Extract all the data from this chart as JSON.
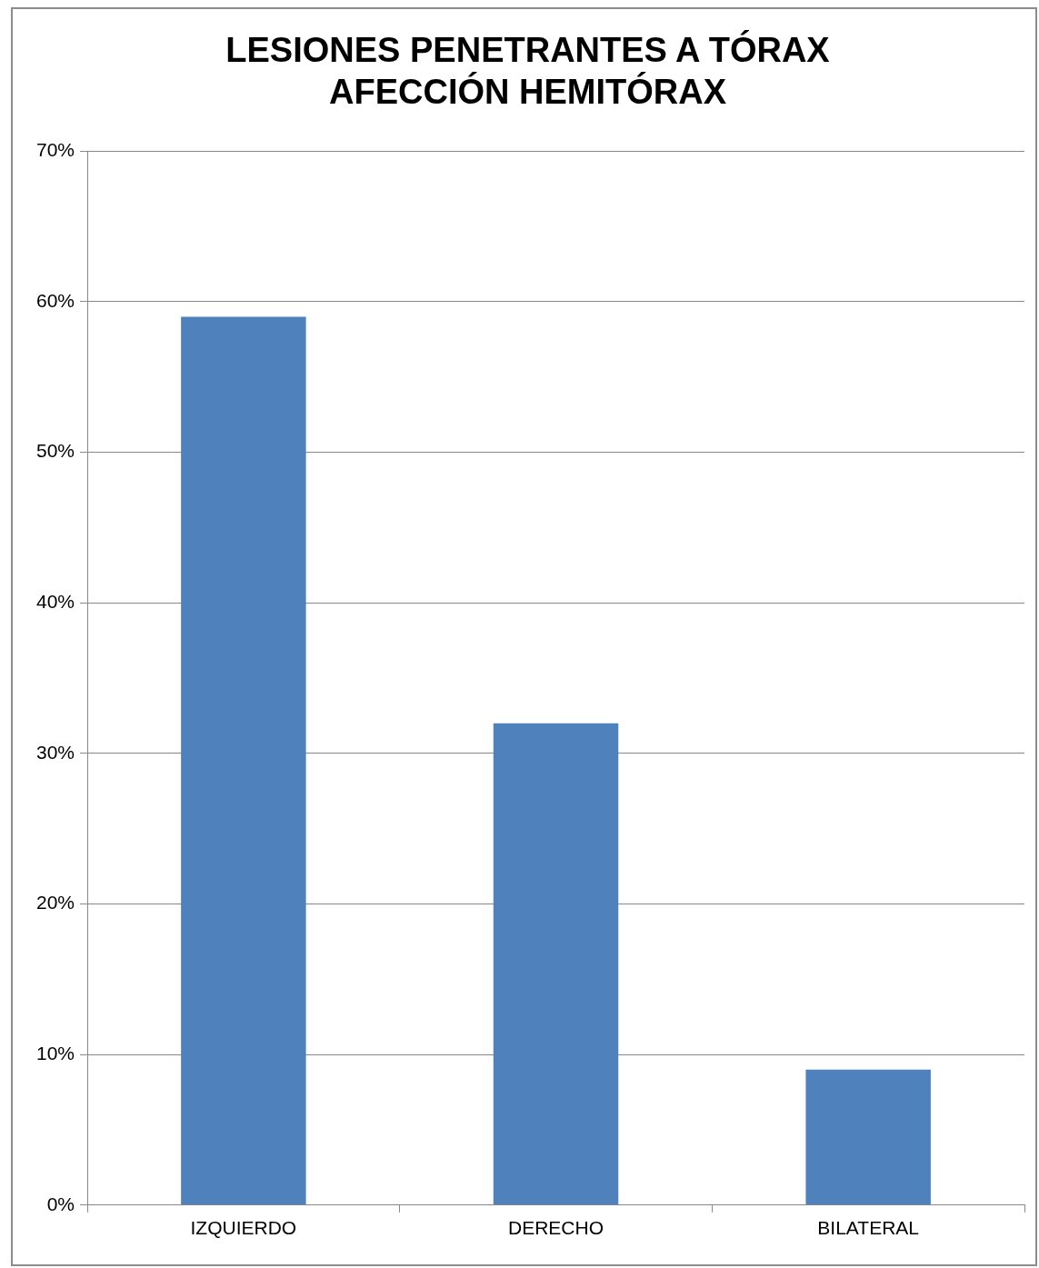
{
  "chart_data": {
    "type": "bar",
    "title": "LESIONES PENETRANTES A TÓRAX\nAFECCIÓN HEMITÓRAX",
    "categories": [
      "IZQUIERDO",
      "DERECHO",
      "BILATERAL"
    ],
    "values": [
      59,
      32,
      9
    ],
    "color": "#4f81bd",
    "ylim": [
      0,
      70
    ],
    "yticks": [
      {
        "value": 0,
        "label": "0%"
      },
      {
        "value": 10,
        "label": "10%"
      },
      {
        "value": 20,
        "label": "20%"
      },
      {
        "value": 30,
        "label": "30%"
      },
      {
        "value": 40,
        "label": "40%"
      },
      {
        "value": 50,
        "label": "50%"
      },
      {
        "value": 60,
        "label": "60%"
      },
      {
        "value": 70,
        "label": "70%"
      }
    ],
    "grid": "y",
    "legend": false
  }
}
